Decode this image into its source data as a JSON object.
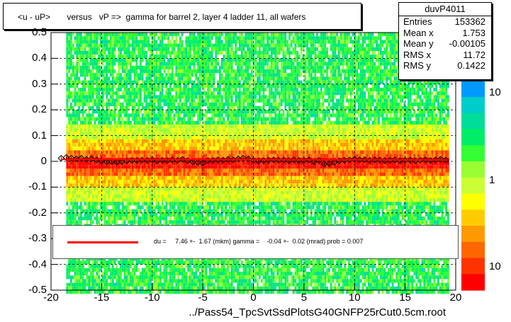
{
  "title": "<u - uP>       versus   vP =>  gamma for barrel 2, layer 4 ladder 11, all wafers",
  "stats": {
    "name": "duvP4011",
    "rows": [
      {
        "key": "Entries",
        "value": "153362"
      },
      {
        "key": "Mean x",
        "value": "1.753"
      },
      {
        "key": "Mean y",
        "value": "-0.00105"
      },
      {
        "key": "RMS x",
        "value": "11.72"
      },
      {
        "key": "RMS y",
        "value": "0.1422"
      }
    ]
  },
  "fit": {
    "text": "du =     7.46 +-  1.67 (mkm) gamma =    -0.04 +-  0.02 (mrad) prob = 0.007",
    "line_color": "#ff0000"
  },
  "chart_data": {
    "type": "heatmap",
    "xlabel": "../Pass54_TpcSvtSsdPlotsG40GNFP25rCut0.5cm.root",
    "ylabel": "",
    "xlim": [
      -20,
      20
    ],
    "ylim": [
      -0.5,
      0.5
    ],
    "x_ticks": [
      "-20",
      "-15",
      "-10",
      "-5",
      "0",
      "5",
      "10",
      "15",
      "20"
    ],
    "y_ticks": [
      "0.5",
      "0.4",
      "0.3",
      "0.2",
      "0.1",
      "0",
      "-0.1",
      "-0.2",
      "-0.3",
      "-0.4",
      "-0.5"
    ],
    "z_ticks": [
      "10",
      "1",
      "10"
    ],
    "z_log": true,
    "grid": true,
    "profile": {
      "x": [
        -19.0,
        -18.5,
        -18.0,
        -17.5,
        -17.0,
        -16.5,
        -16.0,
        -15.5,
        -15.0,
        -14.5,
        -14.0,
        -13.5,
        -13.0,
        -12.5,
        -12.0,
        -11.5,
        -11.0,
        -10.5,
        -10.0,
        -9.5,
        -9.0,
        -8.5,
        -8.0,
        -7.5,
        -7.0,
        -6.5,
        -6.0,
        -5.5,
        -5.0,
        -4.5,
        -4.0,
        -3.5,
        -3.0,
        -2.5,
        -2.0,
        -1.5,
        -1.0,
        -0.5,
        0.0,
        0.5,
        1.0,
        1.5,
        2.0,
        2.5,
        3.0,
        3.5,
        4.0,
        4.5,
        5.0,
        5.5,
        6.0,
        6.5,
        7.0,
        7.5,
        8.0,
        8.5,
        9.0,
        9.5,
        10.0,
        10.5,
        11.0,
        11.5,
        12.0,
        12.5,
        13.0,
        13.5,
        14.0,
        14.5,
        15.0,
        15.5,
        16.0,
        16.5,
        17.0,
        17.5,
        18.0,
        18.5,
        19.0
      ],
      "y": [
        0.012,
        0.015,
        0.013,
        0.01,
        0.012,
        0.008,
        0.01,
        0.006,
        0.002,
        -0.002,
        0.0,
        -0.003,
        -0.001,
        0.002,
        0.004,
        0.003,
        0.005,
        0.004,
        0.006,
        0.002,
        0.004,
        0.003,
        0.006,
        0.004,
        0.008,
        0.002,
        -0.002,
        -0.004,
        -0.006,
        0.003,
        0.004,
        0.006,
        0.005,
        0.008,
        0.006,
        0.01,
        0.012,
        0.009,
        0.004,
        0.002,
        0.003,
        0.004,
        0.006,
        0.004,
        0.005,
        0.003,
        0.006,
        0.004,
        0.003,
        0.006,
        -0.002,
        0.004,
        -0.01,
        -0.008,
        -0.004,
        0.002,
        0.004,
        0.006,
        0.008,
        0.006,
        0.007,
        0.004,
        0.006,
        0.005,
        0.003,
        0.004,
        0.006,
        0.003,
        0.004,
        0.005,
        0.002,
        0.004,
        0.006,
        0.003,
        0.006,
        0.008,
        0.005
      ]
    },
    "fit_line": {
      "x": [
        -19.0,
        19.0
      ],
      "y": [
        0.008,
        0.0055
      ]
    }
  }
}
